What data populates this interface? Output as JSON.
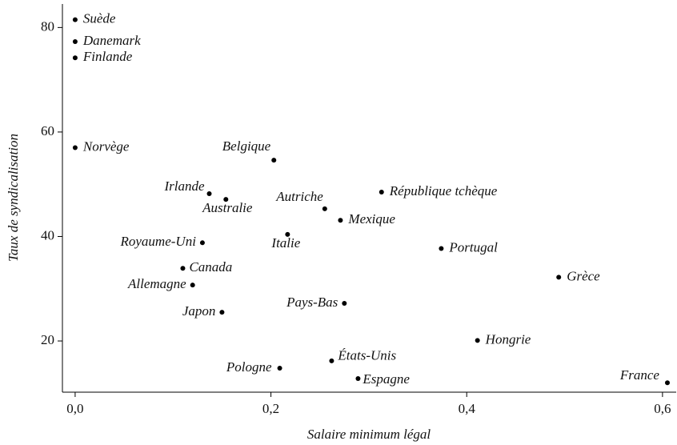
{
  "chart_data": {
    "type": "scatter",
    "xlabel": "Salaire minimum légal",
    "ylabel": "Taux de syndicalisation",
    "labels": [
      "Suède",
      "Danemark",
      "Finlande",
      "Norvège",
      "Belgique",
      "Irlande",
      "Australie",
      "Autriche",
      "République tchèque",
      "Mexique",
      "Italie",
      "Royaume-Uni",
      "Portugal",
      "Canada",
      "Grèce",
      "Allemagne",
      "Pays-Bas",
      "Japon",
      "Hongrie",
      "États-Unis",
      "Pologne",
      "Espagne",
      "France"
    ],
    "x": [
      0.0,
      0.0,
      0.0,
      0.0,
      0.203,
      0.137,
      0.154,
      0.255,
      0.313,
      0.271,
      0.217,
      0.13,
      0.374,
      0.11,
      0.494,
      0.12,
      0.275,
      0.15,
      0.411,
      0.262,
      0.209,
      0.289,
      0.605
    ],
    "values": [
      81.5,
      77.3,
      74.2,
      57.0,
      54.6,
      48.2,
      47.1,
      45.3,
      48.5,
      43.1,
      40.4,
      38.8,
      37.7,
      33.9,
      32.2,
      30.7,
      27.2,
      25.5,
      20.1,
      16.2,
      14.8,
      12.8,
      12.0
    ],
    "color": "#000000",
    "xlim": [
      -0.013,
      0.614
    ],
    "ylim": [
      10.2,
      84.5
    ],
    "xticks": [
      {
        "value": 0,
        "label": "0,0"
      },
      {
        "value": 0.2,
        "label": "0,2"
      },
      {
        "value": 0.4,
        "label": "0,4"
      },
      {
        "value": 0.6,
        "label": "0,6"
      }
    ],
    "yticks": [
      20,
      40,
      60,
      80
    ]
  }
}
